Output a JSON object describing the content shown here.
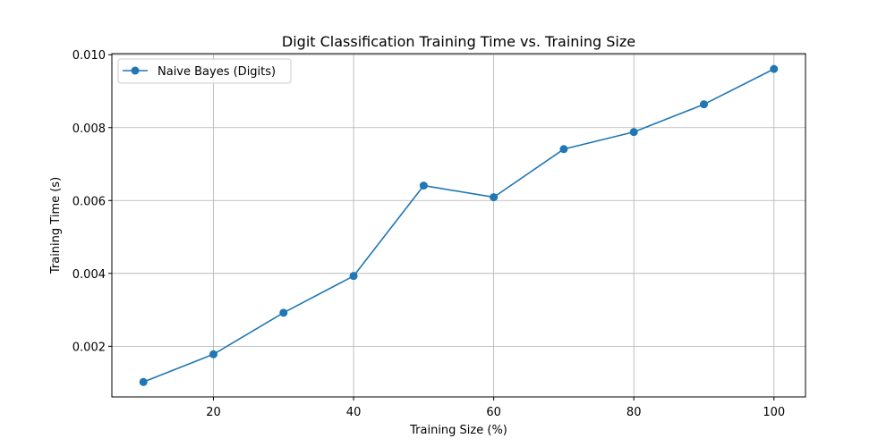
{
  "chart_data": {
    "type": "line",
    "title": "Digit Classification Training Time vs. Training Size",
    "xlabel": "Training Size (%)",
    "ylabel": "Training Time (s)",
    "xlim": [
      5.5,
      104.5
    ],
    "ylim": [
      0.00061,
      0.01003
    ],
    "x_ticks": [
      20,
      40,
      60,
      80,
      100
    ],
    "y_ticks": [
      0.002,
      0.004,
      0.006,
      0.008,
      0.01
    ],
    "x_tick_labels": [
      "20",
      "40",
      "60",
      "80",
      "100"
    ],
    "y_tick_labels": [
      "0.002",
      "0.004",
      "0.006",
      "0.008",
      "0.010"
    ],
    "grid": true,
    "legend_position": "top-left",
    "series": [
      {
        "name": "Naive Bayes (Digits)",
        "color": "#1f77b4",
        "marker": "circle",
        "x": [
          10,
          20,
          30,
          40,
          50,
          60,
          70,
          80,
          90,
          100
        ],
        "y": [
          0.00102,
          0.00178,
          0.00292,
          0.00393,
          0.00641,
          0.00609,
          0.00741,
          0.00788,
          0.00864,
          0.00961
        ]
      }
    ]
  }
}
